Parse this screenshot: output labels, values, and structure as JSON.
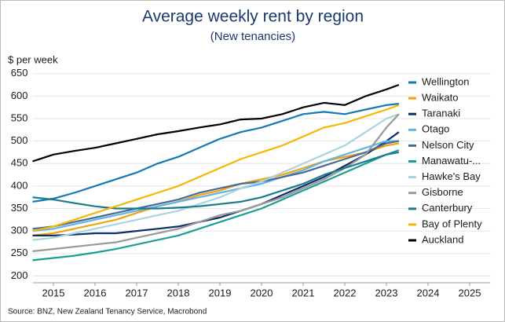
{
  "chart_data": {
    "type": "line",
    "title": "Average weekly rent by region",
    "subtitle": "(New tenancies)",
    "ylabel": "$ per week",
    "source": "Source: BNZ, New Zealand Tenancy Service, Macrobond",
    "x": [
      2015.0,
      2015.5,
      2016.0,
      2016.5,
      2017.0,
      2017.5,
      2018.0,
      2018.5,
      2019.0,
      2019.5,
      2020.0,
      2020.5,
      2021.0,
      2021.5,
      2022.0,
      2022.5,
      2023.0,
      2023.5,
      2023.8
    ],
    "xlim": [
      2015,
      2026
    ],
    "xticks": [
      {
        "value": 2015.5,
        "label": "2015"
      },
      {
        "value": 2016.5,
        "label": "2016"
      },
      {
        "value": 2017.5,
        "label": "2017"
      },
      {
        "value": 2018.5,
        "label": "2018"
      },
      {
        "value": 2019.5,
        "label": "2019"
      },
      {
        "value": 2020.5,
        "label": "2020"
      },
      {
        "value": 2021.5,
        "label": "2021"
      },
      {
        "value": 2022.5,
        "label": "2022"
      },
      {
        "value": 2023.5,
        "label": "2023"
      },
      {
        "value": 2024.5,
        "label": "2024"
      },
      {
        "value": 2025.5,
        "label": "2025"
      }
    ],
    "ylim": [
      185,
      660
    ],
    "yticks": [
      200,
      250,
      300,
      350,
      400,
      450,
      500,
      550,
      600,
      650
    ],
    "grid": true,
    "legend": "right",
    "series": [
      {
        "name": "Wellington",
        "color": "#1279b5",
        "values": [
          365,
          372,
          385,
          400,
          415,
          430,
          450,
          465,
          485,
          505,
          520,
          530,
          545,
          560,
          565,
          560,
          570,
          580,
          583
        ]
      },
      {
        "name": "Waikato",
        "color": "#f0a30a",
        "values": [
          290,
          295,
          305,
          315,
          325,
          340,
          355,
          365,
          380,
          390,
          405,
          415,
          425,
          440,
          455,
          465,
          475,
          490,
          495
        ]
      },
      {
        "name": "Taranaki",
        "color": "#0d2d6b",
        "values": [
          290,
          290,
          292,
          295,
          295,
          300,
          305,
          310,
          320,
          330,
          345,
          360,
          380,
          400,
          420,
          445,
          470,
          500,
          520
        ]
      },
      {
        "name": "Otago",
        "color": "#62b5e0",
        "values": [
          300,
          305,
          315,
          325,
          335,
          345,
          355,
          365,
          375,
          385,
          395,
          405,
          420,
          435,
          455,
          470,
          485,
          500,
          500
        ]
      },
      {
        "name": "Nelson City",
        "color": "#4a6a9a",
        "values": [
          305,
          310,
          320,
          330,
          340,
          350,
          360,
          370,
          385,
          395,
          405,
          410,
          420,
          430,
          445,
          460,
          475,
          495,
          500
        ]
      },
      {
        "name": "Manawatu-...",
        "color": "#1a9e96",
        "values": [
          235,
          240,
          245,
          252,
          260,
          270,
          280,
          290,
          305,
          320,
          335,
          350,
          370,
          390,
          410,
          430,
          450,
          470,
          480
        ]
      },
      {
        "name": "Hawke's Bay",
        "color": "#a8d4e0",
        "values": [
          280,
          285,
          295,
          305,
          315,
          325,
          335,
          345,
          360,
          375,
          395,
          410,
          430,
          450,
          470,
          490,
          520,
          550,
          560
        ]
      },
      {
        "name": "Gisborne",
        "color": "#999999",
        "values": [
          255,
          260,
          265,
          270,
          275,
          285,
          295,
          305,
          320,
          335,
          345,
          360,
          375,
          395,
          415,
          440,
          470,
          530,
          560
        ]
      },
      {
        "name": "Canterbury",
        "color": "#1c7a8c",
        "values": [
          375,
          370,
          362,
          355,
          350,
          350,
          350,
          352,
          355,
          360,
          365,
          375,
          390,
          405,
          425,
          440,
          455,
          470,
          475
        ]
      },
      {
        "name": "Bay of Plenty",
        "color": "#f5b800",
        "values": [
          300,
          310,
          325,
          340,
          355,
          370,
          385,
          400,
          420,
          440,
          460,
          475,
          490,
          510,
          530,
          540,
          555,
          570,
          580
        ]
      },
      {
        "name": "Auckland",
        "color": "#000000",
        "values": [
          455,
          470,
          478,
          485,
          495,
          505,
          515,
          522,
          530,
          537,
          548,
          550,
          560,
          575,
          585,
          580,
          600,
          615,
          625
        ]
      }
    ]
  }
}
